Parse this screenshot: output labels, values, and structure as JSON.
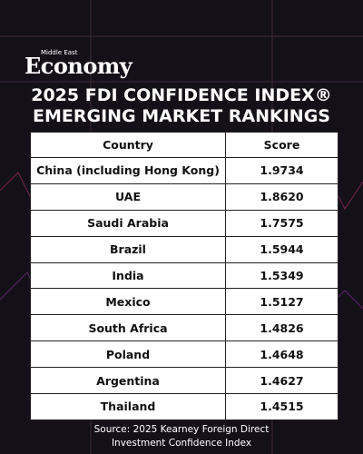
{
  "logo": {
    "small": "Middle East",
    "big": "Economy"
  },
  "title": [
    "2025 FDI CONFIDENCE INDEX®",
    "EMERGING MARKET RANKINGS"
  ],
  "table": {
    "header": [
      "Country",
      "Score"
    ],
    "rows": [
      [
        "China (including Hong Kong)",
        "1.9734"
      ],
      [
        "UAE",
        "1.8620"
      ],
      [
        "Saudi Arabia",
        "1.7575"
      ],
      [
        "Brazil",
        "1.5944"
      ],
      [
        "India",
        "1.5349"
      ],
      [
        "Mexico",
        "1.5127"
      ],
      [
        "South Africa",
        "1.4826"
      ],
      [
        "Poland",
        "1.4648"
      ],
      [
        "Argentina",
        "1.4627"
      ],
      [
        "Thailand",
        "1.4515"
      ]
    ]
  },
  "source": [
    "Source: 2025 Kearney Foreign Direct",
    "Investment Confidence Index"
  ]
}
